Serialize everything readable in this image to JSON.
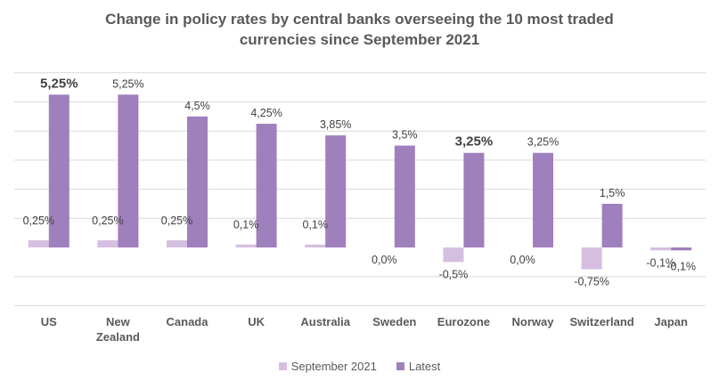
{
  "chart_data": {
    "type": "bar",
    "title_line1": "Change in policy rates by central banks overseeing the 10 most traded",
    "title_line2": "currencies since September 2021",
    "categories": [
      "US",
      "New\nZealand",
      "Canada",
      "UK",
      "Australia",
      "Sweden",
      "Eurozone",
      "Norway",
      "Switzerland",
      "Japan"
    ],
    "series": [
      {
        "name": "September 2021",
        "color": "#d5bfe0",
        "values": [
          0.25,
          0.25,
          0.25,
          0.1,
          0.1,
          0.0,
          -0.5,
          0.0,
          -0.75,
          -0.1
        ],
        "labels": [
          "0,25%",
          "0,25%",
          "0,25%",
          "0,1%",
          "0,1%",
          "0,0%",
          "-0,5%",
          "0,0%",
          "-0,75%",
          "-0,1%"
        ]
      },
      {
        "name": "Latest",
        "color": "#a07fbd",
        "values": [
          5.25,
          5.25,
          4.5,
          4.25,
          3.85,
          3.5,
          3.25,
          3.25,
          1.5,
          -0.1
        ],
        "labels": [
          "5,25%",
          "5,25%",
          "4,5%",
          "4,25%",
          "3,85%",
          "3,5%",
          "3,25%",
          "3,25%",
          "1,5%",
          "-0,1%"
        ],
        "bold_labels": [
          "US",
          "Eurozone"
        ]
      }
    ],
    "ylim": [
      -2,
      6
    ],
    "grid": true,
    "legend_position": "bottom"
  }
}
